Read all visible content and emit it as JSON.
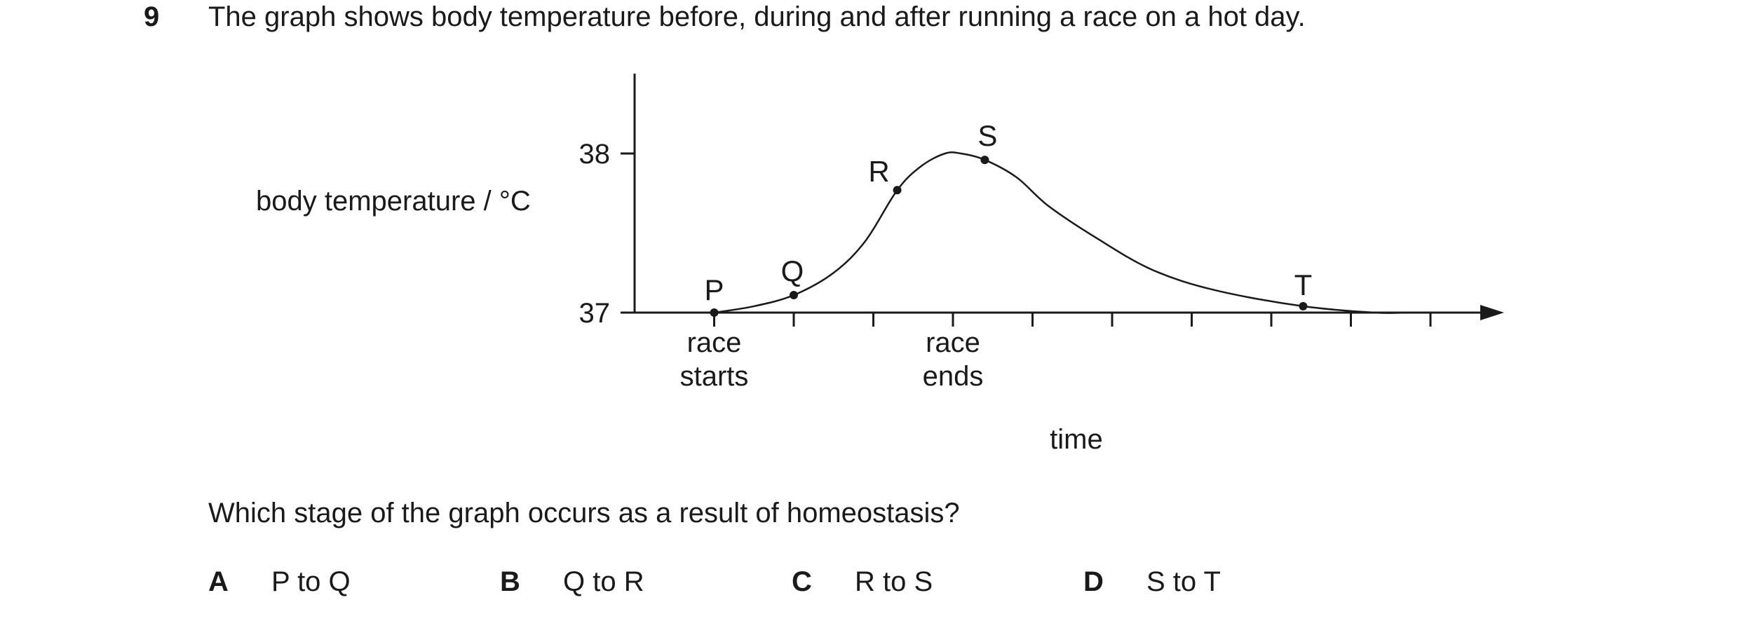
{
  "question": {
    "number": "9",
    "stem": "The graph shows body temperature before, during and after running a race on a hot day.",
    "prompt": "Which stage of the graph occurs as a result of homeostasis?"
  },
  "options": [
    {
      "letter": "A",
      "text": "P to Q"
    },
    {
      "letter": "B",
      "text": "Q to R"
    },
    {
      "letter": "C",
      "text": "R to S"
    },
    {
      "letter": "D",
      "text": "S to T"
    }
  ],
  "chart_data": {
    "type": "line",
    "xlabel": "time",
    "ylabel": "body temperature / °C",
    "yticks": [
      "37",
      "38"
    ],
    "tick_labels": [
      {
        "line1": "race",
        "line2": "starts"
      },
      {
        "line1": "race",
        "line2": "ends"
      }
    ],
    "points": [
      {
        "label": "P",
        "x": 1.0,
        "y": 37.0
      },
      {
        "label": "Q",
        "x": 2.0,
        "y": 37.11
      },
      {
        "label": "R",
        "x": 3.3,
        "y": 37.77
      },
      {
        "label": "S",
        "x": 4.4,
        "y": 37.96
      },
      {
        "label": "T",
        "x": 8.4,
        "y": 37.04
      }
    ],
    "curve": [
      [
        1.0,
        37.0
      ],
      [
        1.5,
        37.04
      ],
      [
        2.0,
        37.11
      ],
      [
        2.5,
        37.25
      ],
      [
        2.9,
        37.45
      ],
      [
        3.3,
        37.77
      ],
      [
        3.6,
        37.92
      ],
      [
        3.9,
        38.0
      ],
      [
        4.1,
        38.0
      ],
      [
        4.4,
        37.96
      ],
      [
        4.8,
        37.85
      ],
      [
        5.2,
        37.67
      ],
      [
        5.8,
        37.47
      ],
      [
        6.5,
        37.27
      ],
      [
        7.3,
        37.14
      ],
      [
        8.4,
        37.04
      ],
      [
        9.3,
        37.0
      ],
      [
        9.7,
        37.0
      ]
    ],
    "x_ticks": 10,
    "xlim": [
      0,
      10.8
    ],
    "ylim": [
      37,
      38.5
    ]
  }
}
